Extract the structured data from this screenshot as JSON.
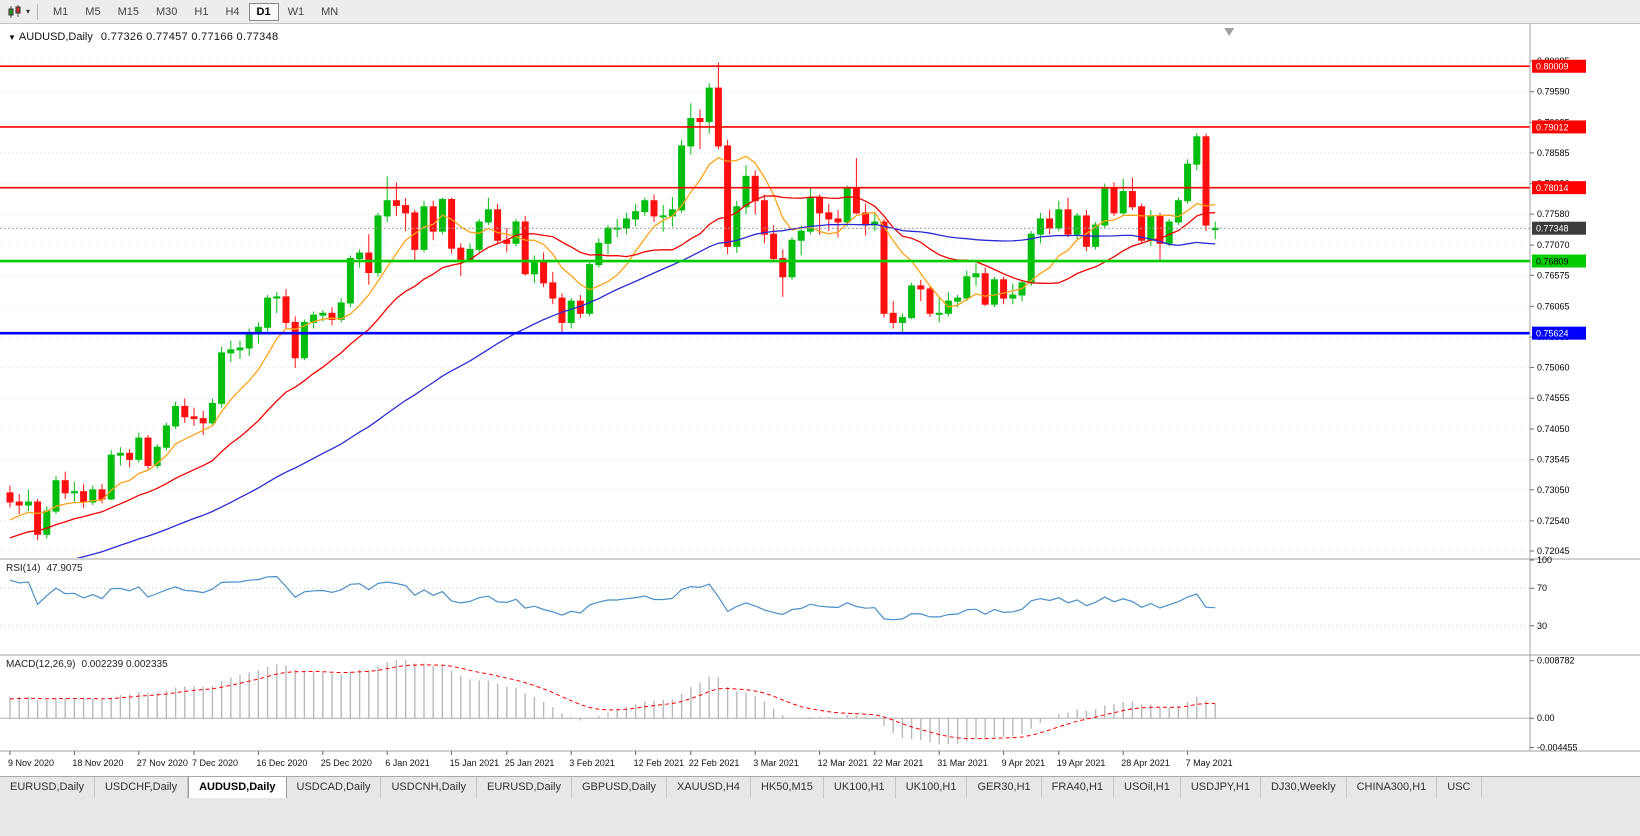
{
  "toolbar": {
    "timeframes": [
      "M1",
      "M5",
      "M15",
      "M30",
      "H1",
      "H4",
      "D1",
      "W1",
      "MN"
    ],
    "active_timeframe": "D1",
    "chart_type_icon": "candlestick-chart",
    "dropdown_caret": "▾"
  },
  "chart": {
    "symbol_dropdown": "▼",
    "title_symbol": "AUDUSD,Daily",
    "ohlc_display": "0.77326 0.77457 0.77166 0.77348",
    "price_axis": {
      "view_high": 0.8067,
      "view_low": 0.7193,
      "ticks": [
        "0.80095",
        "0.79590",
        "0.79085",
        "0.78585",
        "0.78080",
        "0.77580",
        "0.77070",
        "0.76575",
        "0.76065",
        "0.75560",
        "0.75060",
        "0.74555",
        "0.74050",
        "0.73545",
        "0.73050",
        "0.72540",
        "0.72045"
      ]
    },
    "levels": [
      {
        "value": 0.80009,
        "label": "0.80009",
        "color": "#ff0000",
        "text": "#ffffff",
        "width": 1.6
      },
      {
        "value": 0.79012,
        "label": "0.79012",
        "color": "#ff0000",
        "text": "#ffffff",
        "width": 1.6
      },
      {
        "value": 0.78014,
        "label": "0.78014",
        "color": "#ff0000",
        "text": "#ffffff",
        "width": 1.6
      },
      {
        "value": 0.76809,
        "label": "0.76809",
        "color": "#00cc00",
        "text": "#000000",
        "width": 2.6
      },
      {
        "value": 0.75624,
        "label": "0.75624",
        "color": "#0000ff",
        "text": "#ffffff",
        "width": 2.6
      }
    ],
    "current_price": {
      "value": 0.77348,
      "label": "0.77348",
      "badge_color": "#3c3c3c",
      "text": "#ffffff"
    },
    "x_labels": [
      {
        "label": "9 Nov 2020",
        "index": 0
      },
      {
        "label": "18 Nov 2020",
        "index": 7
      },
      {
        "label": "27 Nov 2020",
        "index": 14
      },
      {
        "label": "7 Dec 2020",
        "index": 20
      },
      {
        "label": "16 Dec 2020",
        "index": 27
      },
      {
        "label": "25 Dec 2020",
        "index": 34
      },
      {
        "label": "6 Jan 2021",
        "index": 41
      },
      {
        "label": "15 Jan 2021",
        "index": 48
      },
      {
        "label": "25 Jan 2021",
        "index": 54
      },
      {
        "label": "3 Feb 2021",
        "index": 61
      },
      {
        "label": "12 Feb 2021",
        "index": 68
      },
      {
        "label": "22 Feb 2021",
        "index": 74
      },
      {
        "label": "3 Mar 2021",
        "index": 81
      },
      {
        "label": "12 Mar 2021",
        "index": 88
      },
      {
        "label": "22 Mar 2021",
        "index": 94
      },
      {
        "label": "31 Mar 2021",
        "index": 101
      },
      {
        "label": "9 Apr 2021",
        "index": 108
      },
      {
        "label": "19 Apr 2021",
        "index": 114
      },
      {
        "label": "28 Apr 2021",
        "index": 121
      },
      {
        "label": "7 May 2021",
        "index": 128
      }
    ],
    "colors": {
      "bull": "#00bd0e",
      "bear": "#ff0f0f",
      "ma_fast": "#ffa319",
      "ma_mid": "#f40000",
      "ma_slow": "#2a2ad4",
      "grid": "#e3e3e3",
      "axis_border": "#a0a0a0"
    }
  },
  "chart_data": {
    "type": "candlestick",
    "symbol": "AUDUSD",
    "period": "Daily",
    "candles": [
      [
        0.73,
        0.7312,
        0.7276,
        0.7285
      ],
      [
        0.7285,
        0.7298,
        0.7265,
        0.728
      ],
      [
        0.728,
        0.7305,
        0.727,
        0.7285
      ],
      [
        0.7285,
        0.729,
        0.7222,
        0.7232
      ],
      [
        0.7232,
        0.7278,
        0.7225,
        0.727
      ],
      [
        0.727,
        0.7328,
        0.7265,
        0.732
      ],
      [
        0.732,
        0.7335,
        0.729,
        0.73
      ],
      [
        0.73,
        0.7318,
        0.7285,
        0.7302
      ],
      [
        0.7302,
        0.7315,
        0.7275,
        0.7285
      ],
      [
        0.7285,
        0.7312,
        0.728,
        0.7305
      ],
      [
        0.7305,
        0.7315,
        0.7283,
        0.729
      ],
      [
        0.729,
        0.737,
        0.7288,
        0.7362
      ],
      [
        0.7362,
        0.7375,
        0.7345,
        0.7365
      ],
      [
        0.7365,
        0.7372,
        0.7342,
        0.7355
      ],
      [
        0.7355,
        0.7399,
        0.735,
        0.739
      ],
      [
        0.739,
        0.7395,
        0.7339,
        0.7345
      ],
      [
        0.7345,
        0.738,
        0.734,
        0.7375
      ],
      [
        0.7375,
        0.7415,
        0.737,
        0.741
      ],
      [
        0.741,
        0.745,
        0.7405,
        0.7442
      ],
      [
        0.7442,
        0.7455,
        0.7415,
        0.7425
      ],
      [
        0.7425,
        0.744,
        0.741,
        0.7422
      ],
      [
        0.7422,
        0.7435,
        0.7395,
        0.7415
      ],
      [
        0.7415,
        0.7455,
        0.741,
        0.7447
      ],
      [
        0.7447,
        0.754,
        0.744,
        0.753
      ],
      [
        0.753,
        0.755,
        0.7515,
        0.7535
      ],
      [
        0.7535,
        0.755,
        0.752,
        0.7538
      ],
      [
        0.7538,
        0.757,
        0.7525,
        0.7562
      ],
      [
        0.7562,
        0.758,
        0.7545,
        0.7572
      ],
      [
        0.7572,
        0.7625,
        0.7565,
        0.762
      ],
      [
        0.762,
        0.763,
        0.7595,
        0.7622
      ],
      [
        0.7622,
        0.7635,
        0.757,
        0.758
      ],
      [
        0.758,
        0.759,
        0.7505,
        0.7522
      ],
      [
        0.7522,
        0.7585,
        0.7518,
        0.758
      ],
      [
        0.758,
        0.7598,
        0.757,
        0.7592
      ],
      [
        0.7592,
        0.76,
        0.7582,
        0.7595
      ],
      [
        0.7595,
        0.7605,
        0.7575,
        0.7585
      ],
      [
        0.7585,
        0.762,
        0.758,
        0.7612
      ],
      [
        0.7612,
        0.769,
        0.7605,
        0.7685
      ],
      [
        0.7685,
        0.77,
        0.767,
        0.7694
      ],
      [
        0.7694,
        0.7725,
        0.7642,
        0.7662
      ],
      [
        0.7662,
        0.776,
        0.7655,
        0.7755
      ],
      [
        0.7755,
        0.782,
        0.7745,
        0.778
      ],
      [
        0.778,
        0.781,
        0.7755,
        0.7772
      ],
      [
        0.7772,
        0.7784,
        0.773,
        0.776
      ],
      [
        0.776,
        0.7765,
        0.768,
        0.77
      ],
      [
        0.77,
        0.778,
        0.7695,
        0.777
      ],
      [
        0.777,
        0.778,
        0.7715,
        0.773
      ],
      [
        0.773,
        0.7785,
        0.7725,
        0.7782
      ],
      [
        0.7782,
        0.7785,
        0.7693,
        0.7702
      ],
      [
        0.7702,
        0.771,
        0.7656,
        0.7682
      ],
      [
        0.7682,
        0.771,
        0.7679,
        0.77
      ],
      [
        0.77,
        0.775,
        0.7695,
        0.7745
      ],
      [
        0.7745,
        0.7785,
        0.774,
        0.7765
      ],
      [
        0.7765,
        0.7775,
        0.7708,
        0.7715
      ],
      [
        0.7715,
        0.7735,
        0.7695,
        0.771
      ],
      [
        0.771,
        0.775,
        0.7705,
        0.7745
      ],
      [
        0.7745,
        0.7755,
        0.7657,
        0.766
      ],
      [
        0.766,
        0.769,
        0.7645,
        0.768
      ],
      [
        0.768,
        0.7695,
        0.7638,
        0.7645
      ],
      [
        0.7645,
        0.7663,
        0.761,
        0.762
      ],
      [
        0.762,
        0.7628,
        0.7563,
        0.758
      ],
      [
        0.758,
        0.762,
        0.757,
        0.7615
      ],
      [
        0.7615,
        0.7625,
        0.7587,
        0.7595
      ],
      [
        0.7595,
        0.768,
        0.759,
        0.7675
      ],
      [
        0.7675,
        0.7718,
        0.767,
        0.771
      ],
      [
        0.771,
        0.774,
        0.7692,
        0.7735
      ],
      [
        0.7735,
        0.775,
        0.772,
        0.7735
      ],
      [
        0.7735,
        0.776,
        0.7725,
        0.775
      ],
      [
        0.775,
        0.7775,
        0.7738,
        0.7762
      ],
      [
        0.7762,
        0.7785,
        0.7755,
        0.778
      ],
      [
        0.778,
        0.779,
        0.7745,
        0.7755
      ],
      [
        0.7755,
        0.7773,
        0.7729,
        0.7755
      ],
      [
        0.7755,
        0.7786,
        0.7737,
        0.7765
      ],
      [
        0.7765,
        0.788,
        0.776,
        0.787
      ],
      [
        0.787,
        0.794,
        0.7856,
        0.7915
      ],
      [
        0.7915,
        0.793,
        0.7865,
        0.791
      ],
      [
        0.791,
        0.7973,
        0.789,
        0.7965
      ],
      [
        0.7965,
        0.8007,
        0.7865,
        0.787
      ],
      [
        0.787,
        0.788,
        0.7692,
        0.7705
      ],
      [
        0.7705,
        0.778,
        0.7694,
        0.777
      ],
      [
        0.777,
        0.7838,
        0.7758,
        0.782
      ],
      [
        0.782,
        0.783,
        0.7757,
        0.778
      ],
      [
        0.778,
        0.779,
        0.771,
        0.7725
      ],
      [
        0.7725,
        0.774,
        0.768,
        0.7685
      ],
      [
        0.7685,
        0.77,
        0.7622,
        0.7655
      ],
      [
        0.7655,
        0.772,
        0.765,
        0.7715
      ],
      [
        0.7715,
        0.7739,
        0.769,
        0.773
      ],
      [
        0.773,
        0.78,
        0.7725,
        0.7785
      ],
      [
        0.7785,
        0.779,
        0.7724,
        0.776
      ],
      [
        0.776,
        0.7775,
        0.773,
        0.775
      ],
      [
        0.775,
        0.7765,
        0.772,
        0.7745
      ],
      [
        0.7745,
        0.7805,
        0.7738,
        0.78
      ],
      [
        0.78,
        0.785,
        0.7758,
        0.776
      ],
      [
        0.776,
        0.7775,
        0.7723,
        0.774
      ],
      [
        0.774,
        0.776,
        0.773,
        0.7745
      ],
      [
        0.7745,
        0.775,
        0.7588,
        0.7595
      ],
      [
        0.7595,
        0.7615,
        0.757,
        0.758
      ],
      [
        0.758,
        0.7595,
        0.7562,
        0.7588
      ],
      [
        0.7588,
        0.7645,
        0.7585,
        0.764
      ],
      [
        0.764,
        0.765,
        0.7615,
        0.7635
      ],
      [
        0.7635,
        0.764,
        0.7589,
        0.7595
      ],
      [
        0.7595,
        0.762,
        0.758,
        0.7595
      ],
      [
        0.7595,
        0.763,
        0.759,
        0.7615
      ],
      [
        0.7615,
        0.7625,
        0.7605,
        0.762
      ],
      [
        0.762,
        0.7665,
        0.7615,
        0.7655
      ],
      [
        0.7655,
        0.7677,
        0.764,
        0.766
      ],
      [
        0.766,
        0.767,
        0.7607,
        0.761
      ],
      [
        0.761,
        0.7655,
        0.7605,
        0.765
      ],
      [
        0.765,
        0.7655,
        0.761,
        0.762
      ],
      [
        0.762,
        0.7644,
        0.761,
        0.7625
      ],
      [
        0.7625,
        0.765,
        0.7615,
        0.7645
      ],
      [
        0.7645,
        0.773,
        0.764,
        0.7725
      ],
      [
        0.7725,
        0.776,
        0.771,
        0.775
      ],
      [
        0.775,
        0.7765,
        0.7725,
        0.7735
      ],
      [
        0.7735,
        0.778,
        0.773,
        0.7765
      ],
      [
        0.7765,
        0.7785,
        0.772,
        0.7725
      ],
      [
        0.7725,
        0.776,
        0.7715,
        0.7755
      ],
      [
        0.7755,
        0.7765,
        0.7697,
        0.7705
      ],
      [
        0.7705,
        0.7745,
        0.77,
        0.774
      ],
      [
        0.774,
        0.7808,
        0.7735,
        0.78
      ],
      [
        0.78,
        0.781,
        0.7755,
        0.776
      ],
      [
        0.776,
        0.7816,
        0.7755,
        0.7795
      ],
      [
        0.7795,
        0.7818,
        0.7765,
        0.777
      ],
      [
        0.777,
        0.7775,
        0.771,
        0.7715
      ],
      [
        0.7715,
        0.7765,
        0.7705,
        0.7755
      ],
      [
        0.7755,
        0.776,
        0.768,
        0.771
      ],
      [
        0.771,
        0.775,
        0.7705,
        0.7745
      ],
      [
        0.7745,
        0.7785,
        0.774,
        0.778
      ],
      [
        0.778,
        0.7848,
        0.7775,
        0.784
      ],
      [
        0.784,
        0.7891,
        0.783,
        0.7885
      ],
      [
        0.7885,
        0.789,
        0.773,
        0.774
      ],
      [
        0.77326,
        0.77457,
        0.77166,
        0.77348
      ]
    ],
    "pre_history_closes": [
      0.705,
      0.7042,
      0.7058,
      0.7066,
      0.706,
      0.7072,
      0.708,
      0.7075,
      0.7088,
      0.7095,
      0.7086,
      0.7098,
      0.7108,
      0.71,
      0.7112,
      0.712,
      0.7113,
      0.7125,
      0.7133,
      0.7122,
      0.7138,
      0.7146,
      0.714,
      0.7152,
      0.716,
      0.715,
      0.7163,
      0.7172,
      0.7165,
      0.7178,
      0.7185,
      0.7175,
      0.7188,
      0.7196,
      0.719,
      0.7202,
      0.721,
      0.72,
      0.7213,
      0.7222,
      0.7215,
      0.7228,
      0.7235,
      0.7226,
      0.724,
      0.7248,
      0.7242,
      0.7255,
      0.7268,
      0.7282
    ],
    "moving_averages": [
      {
        "period": 8,
        "color_key": "ma_fast"
      },
      {
        "period": 20,
        "color_key": "ma_mid"
      },
      {
        "period": 50,
        "color_key": "ma_slow"
      }
    ]
  },
  "rsi": {
    "label": "RSI(14)",
    "value": "47.9075",
    "period": 14,
    "ticks": [
      "100",
      "70",
      "30"
    ],
    "levels": [
      70,
      30
    ],
    "color": "#4a90c8"
  },
  "macd": {
    "label": "MACD(12,26,9)",
    "values": "0.002239 0.002335",
    "fast": 12,
    "slow": 26,
    "signal": 9,
    "axis": {
      "view_high": 0.0095,
      "view_low": -0.005,
      "ticks": [
        {
          "v": 0.008782,
          "label": "0.008782"
        },
        {
          "v": 0,
          "label": "0.00"
        },
        {
          "v": -0.004455,
          "label": "-0.004455"
        }
      ]
    },
    "histogram_color": "#b8b8b8",
    "signal_color": "#ff0000"
  },
  "tabs": {
    "items": [
      "EURUSD,Daily",
      "USDCHF,Daily",
      "AUDUSD,Daily",
      "USDCAD,Daily",
      "USDCNH,Daily",
      "EURUSD,Daily",
      "GBPUSD,Daily",
      "XAUUSD,H4",
      "HK50,M15",
      "UK100,H1",
      "UK100,H1",
      "GER30,H1",
      "FRA40,H1",
      "USOil,H1",
      "USDJPY,H1",
      "DJ30,Weekly",
      "CHINA300,H1",
      "USC"
    ],
    "active_index": 2
  }
}
